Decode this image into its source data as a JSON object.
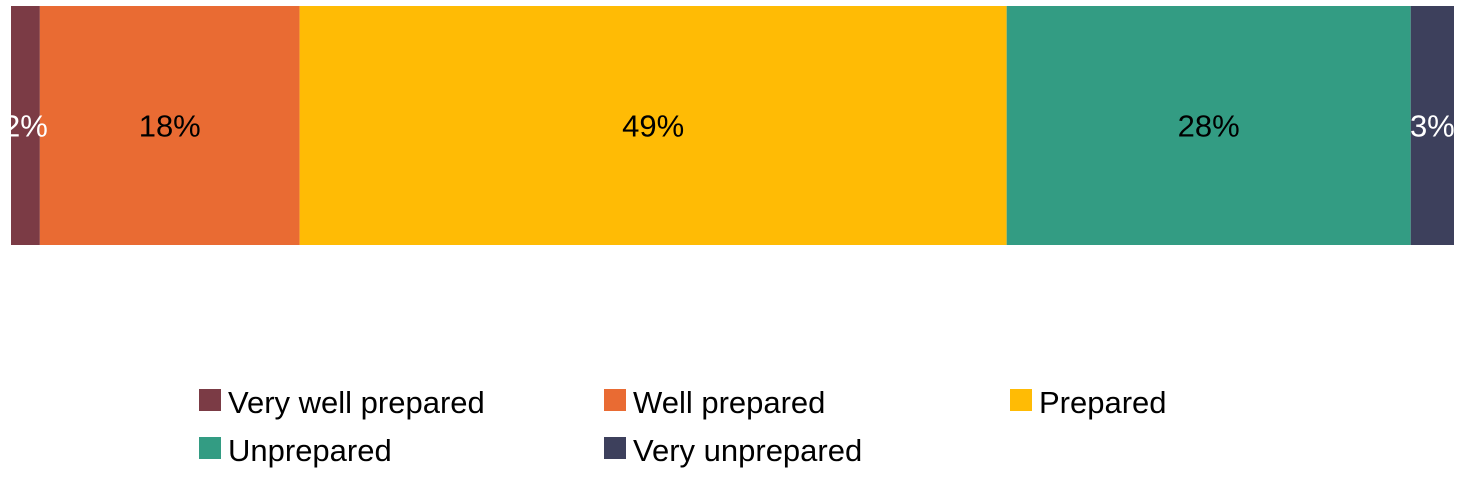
{
  "chart_data": {
    "type": "bar",
    "orientation": "horizontal",
    "stacked": "percent",
    "title": "",
    "xlabel": "",
    "ylabel": "",
    "xlim": [
      0,
      100
    ],
    "grid": false,
    "legend_position": "bottom",
    "series": [
      {
        "name": "Very well prepared",
        "value": 2,
        "label": "2%",
        "color": "#7B3B45",
        "label_color": "#ffffff"
      },
      {
        "name": "Well prepared",
        "value": 18,
        "label": "18%",
        "color": "#E96B33",
        "label_color": "#000000"
      },
      {
        "name": "Prepared",
        "value": 49,
        "label": "49%",
        "color": "#FFBB05",
        "label_color": "#000000"
      },
      {
        "name": "Unprepared",
        "value": 28,
        "label": "28%",
        "color": "#339C83",
        "label_color": "#000000"
      },
      {
        "name": "Very unprepared",
        "value": 3,
        "label": "3%",
        "color": "#3D405C",
        "label_color": "#ffffff"
      }
    ]
  }
}
